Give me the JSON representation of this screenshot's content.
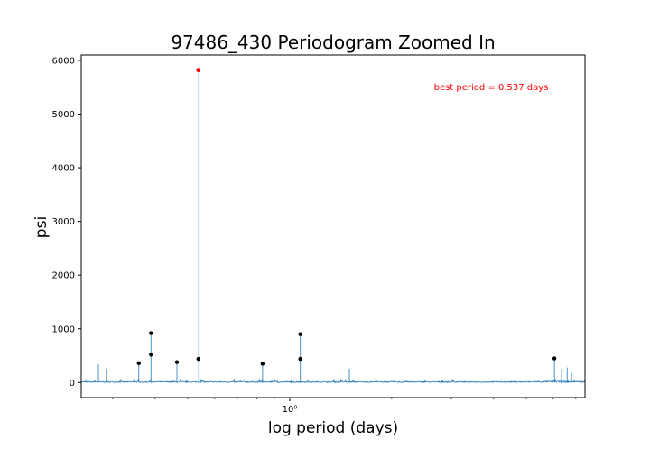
{
  "chart_data": {
    "type": "line",
    "title": "97486_430 Periodogram Zoomed In",
    "xlabel": "log period (days)",
    "ylabel": "psi",
    "x_scale": "log",
    "xlim": [
      0.242,
      7.45
    ],
    "ylim": [
      -280,
      6100
    ],
    "x_ticks": [
      {
        "value": 1,
        "label": "10⁰"
      }
    ],
    "y_ticks": [
      {
        "value": 0,
        "label": "0"
      },
      {
        "value": 1000,
        "label": "1000"
      },
      {
        "value": 2000,
        "label": "2000"
      },
      {
        "value": 3000,
        "label": "3000"
      },
      {
        "value": 4000,
        "label": "4000"
      },
      {
        "value": 5000,
        "label": "5000"
      },
      {
        "value": 6000,
        "label": "6000"
      }
    ],
    "annotation": "best period = 0.537 days",
    "best_period": {
      "x": 0.537,
      "y": 5820
    },
    "peaks": [
      {
        "x": 0.358,
        "y": 360
      },
      {
        "x": 0.389,
        "y": 920
      },
      {
        "x": 0.389,
        "y": 520
      },
      {
        "x": 0.464,
        "y": 380
      },
      {
        "x": 0.537,
        "y": 440
      },
      {
        "x": 0.831,
        "y": 350
      },
      {
        "x": 1.074,
        "y": 440
      },
      {
        "x": 1.074,
        "y": 900
      },
      {
        "x": 6.05,
        "y": 450
      }
    ],
    "spikes": [
      {
        "x": 0.272,
        "y": 340
      },
      {
        "x": 0.287,
        "y": 260
      },
      {
        "x": 0.358,
        "y": 380
      },
      {
        "x": 0.389,
        "y": 940
      },
      {
        "x": 0.464,
        "y": 400
      },
      {
        "x": 0.537,
        "y": 5820
      },
      {
        "x": 0.831,
        "y": 360
      },
      {
        "x": 1.074,
        "y": 920
      },
      {
        "x": 1.5,
        "y": 260
      },
      {
        "x": 6.05,
        "y": 460
      },
      {
        "x": 6.35,
        "y": 250
      },
      {
        "x": 6.6,
        "y": 280
      },
      {
        "x": 6.8,
        "y": 180
      }
    ],
    "colors": {
      "line": "#1f77b4",
      "best": "#ff0000",
      "peaks": "#000000",
      "annotation": "#ff0000"
    }
  }
}
